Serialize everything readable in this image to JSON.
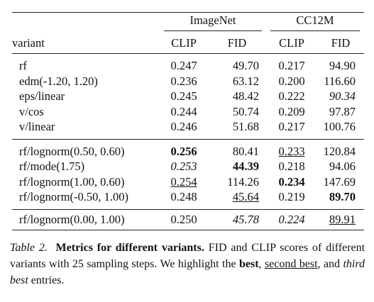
{
  "table": {
    "groups": [
      "ImageNet",
      "CC12M"
    ],
    "columns": [
      "variant",
      "CLIP",
      "FID",
      "CLIP",
      "FID"
    ],
    "sections": [
      [
        [
          "rf",
          "0.247",
          "49.70",
          "0.217",
          "94.90"
        ],
        [
          "edm(-1.20, 1.20)",
          "0.236",
          "63.12",
          "0.200",
          "116.60"
        ],
        [
          "eps/linear",
          "0.245",
          "48.42",
          "0.222",
          "90.34"
        ],
        [
          "v/cos",
          "0.244",
          "50.74",
          "0.209",
          "97.87"
        ],
        [
          "v/linear",
          "0.246",
          "51.68",
          "0.217",
          "100.76"
        ]
      ],
      [
        [
          "rf/lognorm(0.50, 0.60)",
          "0.256",
          "80.41",
          "0.233",
          "120.84"
        ],
        [
          "rf/mode(1.75)",
          "0.253",
          "44.39",
          "0.218",
          "94.06"
        ],
        [
          "rf/lognorm(1.00, 0.60)",
          "0.254",
          "114.26",
          "0.234",
          "147.69"
        ],
        [
          "rf/lognorm(-0.50, 1.00)",
          "0.248",
          "45.64",
          "0.219",
          "89.70"
        ]
      ],
      [
        [
          "rf/lognorm(0.00, 1.00)",
          "0.250",
          "45.78",
          "0.224",
          "89.91"
        ]
      ]
    ]
  },
  "caption": {
    "label": "Table 2.",
    "title": "Metrics for different variants.",
    "parts": [
      "FID and CLIP scores of different variants with 25 sampling steps. We highlight the",
      "best",
      ",",
      "second best",
      ", and",
      "third best",
      "entries."
    ]
  }
}
